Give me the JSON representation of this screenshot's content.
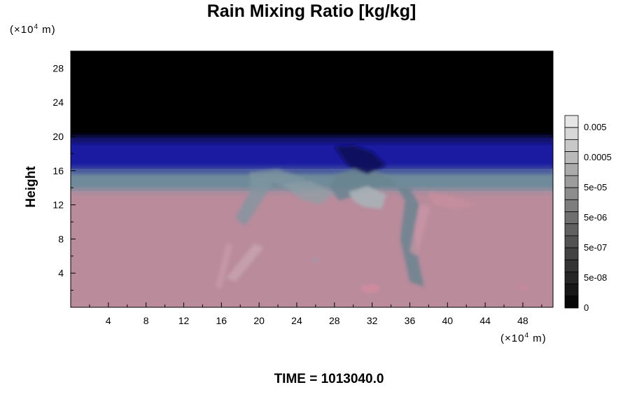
{
  "chart_data": {
    "type": "heatmap",
    "title": "Rain Mixing Ratio [kg/kg]",
    "ylabel": "Height",
    "x_unit_label": {
      "prefix": "(×10",
      "exp": "4",
      "suffix": " m)"
    },
    "y_unit_label": {
      "prefix": "(×10",
      "exp": "4",
      "suffix": " m)"
    },
    "x_ticks": [
      4,
      8,
      12,
      16,
      20,
      24,
      28,
      32,
      36,
      40,
      44,
      48
    ],
    "x_ticks_text": [
      "4",
      "8",
      "12",
      "16",
      "20",
      "24",
      "28",
      "32",
      "36",
      "40",
      "44",
      "48"
    ],
    "xlim": [
      0,
      51.2
    ],
    "y_ticks": [
      4,
      8,
      12,
      16,
      20,
      24,
      28
    ],
    "y_ticks_text": [
      "4",
      "8",
      "12",
      "16",
      "20",
      "24",
      "28"
    ],
    "ylim": [
      0,
      30
    ],
    "colorbar": {
      "labels": [
        "0.005",
        "0.0005",
        "5e-05",
        "5e-06",
        "5e-07",
        "5e-08",
        "0"
      ],
      "levels": 16
    },
    "layers": [
      {
        "name": "clear upper region",
        "y_from": 19.8,
        "y_to": 30,
        "color": "#000000"
      },
      {
        "name": "upper band",
        "y_from": 16.2,
        "y_to": 19.8,
        "color": "#1a1ba0"
      },
      {
        "name": "transition band",
        "y_from": 13.6,
        "y_to": 16.2,
        "color": "#6f8a9a"
      },
      {
        "name": "lower region",
        "y_from": 0,
        "y_to": 13.6,
        "color": "#b98b9b"
      }
    ],
    "time_label": "TIME = 1013040.0"
  }
}
